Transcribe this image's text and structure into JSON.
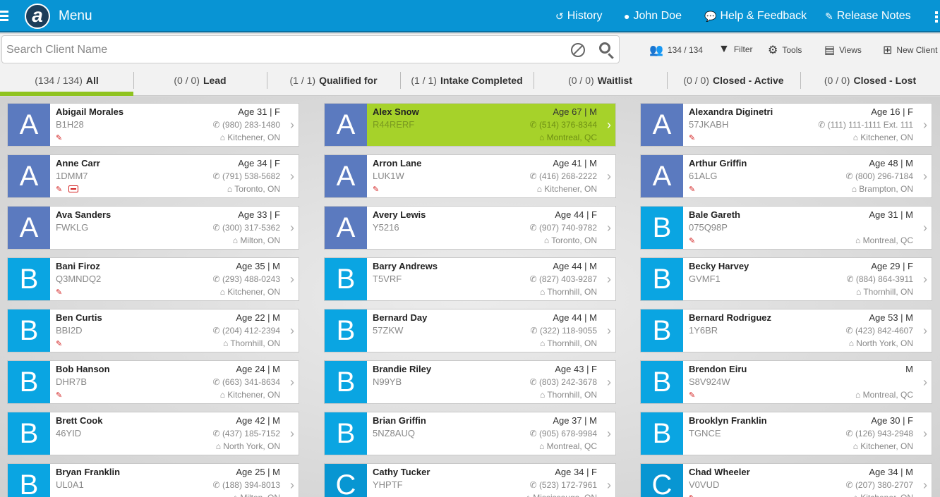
{
  "header": {
    "menu_label": "Menu",
    "logo_letter": "a",
    "nav": [
      {
        "label": "History",
        "icon": "history-icon"
      },
      {
        "label": "John Doe",
        "icon": "user-icon"
      },
      {
        "label": "Help & Feedback",
        "icon": "chat-icon"
      },
      {
        "label": "Release Notes",
        "icon": "edit-icon"
      }
    ]
  },
  "search": {
    "placeholder": "Search Client Name",
    "value": ""
  },
  "toolbar": {
    "count": "134 / 134",
    "filter": "Filter",
    "tools": "Tools",
    "views": "Views",
    "new_client": "New Client"
  },
  "tabs": [
    {
      "count": "(134 / 134)",
      "label": "All",
      "active": true
    },
    {
      "count": "(0 / 0)",
      "label": "Lead"
    },
    {
      "count": "(1 / 1)",
      "label": "Qualified for"
    },
    {
      "count": "(1 / 1)",
      "label": "Intake Completed"
    },
    {
      "count": "(0 / 0)",
      "label": "Waitlist"
    },
    {
      "count": "(0 / 0)",
      "label": "Closed - Active"
    },
    {
      "count": "(0 / 0)",
      "label": "Closed - Lost"
    }
  ],
  "clients": [
    {
      "letter": "A",
      "name": "Abigail Morales",
      "code": "B1H28",
      "age": "Age 31 | F",
      "phone": "(980) 283-1480",
      "city": "Kitchener, ON",
      "pencil": true
    },
    {
      "letter": "A",
      "name": "Alex Snow",
      "code": "R44RERF",
      "age": "Age 67 | M",
      "phone": "(514) 376-8344",
      "city": "Montreal, QC",
      "selected": true
    },
    {
      "letter": "A",
      "name": "Alexandra Diginetri",
      "code": "57JKABH",
      "age": "Age 16 | F",
      "phone": "(111) 111-1111 Ext. 111",
      "city": "Kitchener, ON",
      "pencil": true
    },
    {
      "letter": "A",
      "name": "Anne Carr",
      "code": "1DMM7",
      "age": "Age 34 | F",
      "phone": "(791) 538-5682",
      "city": "Toronto, ON",
      "pencil": true,
      "idcard": true
    },
    {
      "letter": "A",
      "name": "Arron Lane",
      "code": "LUK1W",
      "age": "Age 41 | M",
      "phone": "(416) 268-2222",
      "city": "Kitchener, ON",
      "pencil": true
    },
    {
      "letter": "A",
      "name": "Arthur Griffin",
      "code": "61ALG",
      "age": "Age 48 | M",
      "phone": "(800) 296-7184",
      "city": "Brampton, ON",
      "pencil": true
    },
    {
      "letter": "A",
      "name": "Ava Sanders",
      "code": "FWKLG",
      "age": "Age 33 | F",
      "phone": "(300) 317-5362",
      "city": "Milton, ON"
    },
    {
      "letter": "A",
      "name": "Avery Lewis",
      "code": "Y5216",
      "age": "Age 44 | F",
      "phone": "(907) 740-9782",
      "city": "Toronto, ON"
    },
    {
      "letter": "B",
      "name": "Bale Gareth",
      "code": "075Q98P",
      "age": "Age 31 | M",
      "phone": "",
      "city": "Montreal, QC",
      "pencil": true
    },
    {
      "letter": "B",
      "name": "Bani Firoz",
      "code": "Q3MNDQ2",
      "age": "Age 35 | M",
      "phone": "(293) 488-0243",
      "city": "Kitchener, ON",
      "pencil": true
    },
    {
      "letter": "B",
      "name": "Barry Andrews",
      "code": "T5VRF",
      "age": "Age 44 | M",
      "phone": "(827) 403-9287",
      "city": "Thornhill, ON"
    },
    {
      "letter": "B",
      "name": "Becky Harvey",
      "code": "GVMF1",
      "age": "Age 29 | F",
      "phone": "(884) 864-3911",
      "city": "Thornhill, ON"
    },
    {
      "letter": "B",
      "name": "Ben Curtis",
      "code": "BBI2D",
      "age": "Age 22 | M",
      "phone": "(204) 412-2394",
      "city": "Thornhill, ON",
      "pencil": true
    },
    {
      "letter": "B",
      "name": "Bernard Day",
      "code": "57ZKW",
      "age": "Age 44 | M",
      "phone": "(322) 118-9055",
      "city": "Thornhill, ON"
    },
    {
      "letter": "B",
      "name": "Bernard Rodriguez",
      "code": "1Y6BR",
      "age": "Age 53 | M",
      "phone": "(423) 842-4607",
      "city": "North York, ON"
    },
    {
      "letter": "B",
      "name": "Bob Hanson",
      "code": "DHR7B",
      "age": "Age 24 | M",
      "phone": "(663) 341-8634",
      "city": "Kitchener, ON",
      "pencil": true
    },
    {
      "letter": "B",
      "name": "Brandie Riley",
      "code": "N99YB",
      "age": "Age 43 | F",
      "phone": "(803) 242-3678",
      "city": "Thornhill, ON"
    },
    {
      "letter": "B",
      "name": "Brendon Eiru",
      "code": "S8V924W",
      "age": "M",
      "phone": "",
      "city": "Montreal, QC",
      "pencil": true
    },
    {
      "letter": "B",
      "name": "Brett Cook",
      "code": "46YID",
      "age": "Age 42 | M",
      "phone": "(437) 185-7152",
      "city": "North York, ON"
    },
    {
      "letter": "B",
      "name": "Brian Griffin",
      "code": "5NZ8AUQ",
      "age": "Age 37 | M",
      "phone": "(905) 678-9984",
      "city": "Montreal, QC"
    },
    {
      "letter": "B",
      "name": "Brooklyn Franklin",
      "code": "TGNCE",
      "age": "Age 30 | F",
      "phone": "(126) 943-2948",
      "city": "Kitchener, ON"
    },
    {
      "letter": "B",
      "name": "Bryan Franklin",
      "code": "UL0A1",
      "age": "Age 25 | M",
      "phone": "(188) 394-8013",
      "city": "Milton, ON"
    },
    {
      "letter": "C",
      "name": "Cathy Tucker",
      "code": "YHPTF",
      "age": "Age 34 | F",
      "phone": "(523) 172-7961",
      "city": "Mississauga, ON"
    },
    {
      "letter": "C",
      "name": "Chad Wheeler",
      "code": "V0VUD",
      "age": "Age 34 | M",
      "phone": "(207) 380-2707",
      "city": "Kitchener, ON",
      "pencil": true
    }
  ]
}
